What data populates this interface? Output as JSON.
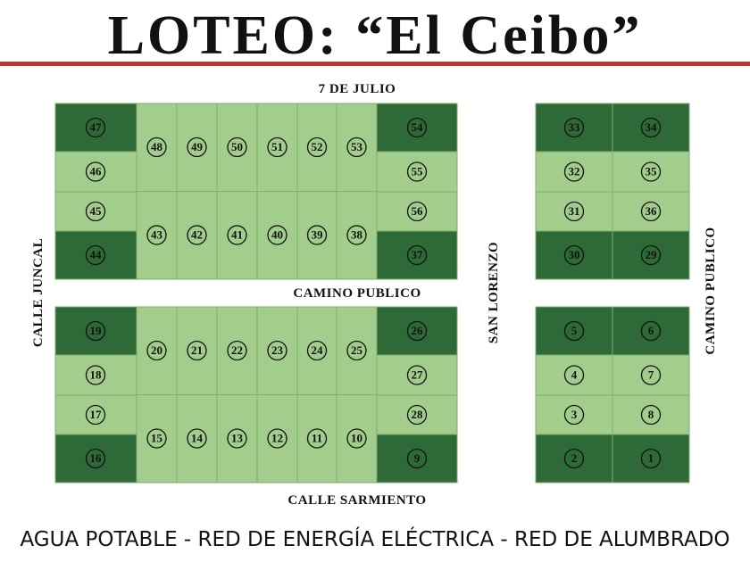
{
  "title": "LOTEO: “El Ceibo”",
  "streets": {
    "top": "7 DE JULIO",
    "middle": "CAMINO PUBLICO",
    "bottom": "CALLE SARMIENTO",
    "left": "CALLE JUNCAL",
    "center": "SAN LORENZO",
    "right": "CAMINO PUBLICO"
  },
  "blocks": [
    {
      "left": [
        "47",
        "46",
        "45",
        "44"
      ],
      "top": [
        "48",
        "49",
        "50",
        "51",
        "52",
        "53"
      ],
      "bottom": [
        "43",
        "42",
        "41",
        "40",
        "39",
        "38"
      ],
      "right": [
        "54",
        "55",
        "56",
        "37"
      ]
    },
    {
      "left": [
        "19",
        "18",
        "17",
        "16"
      ],
      "top": [
        "20",
        "21",
        "22",
        "23",
        "24",
        "25"
      ],
      "bottom": [
        "15",
        "14",
        "13",
        "12",
        "11",
        "10"
      ],
      "right": [
        "26",
        "27",
        "28",
        "9"
      ]
    },
    {
      "rows": [
        [
          "33",
          "34"
        ],
        [
          "32",
          "35"
        ],
        [
          "31",
          "36"
        ],
        [
          "30",
          "29"
        ]
      ]
    },
    {
      "rows": [
        [
          "5",
          "6"
        ],
        [
          "4",
          "7"
        ],
        [
          "3",
          "8"
        ],
        [
          "2",
          "1"
        ]
      ]
    }
  ],
  "footer": "AGUA POTABLE - RED DE ENERGÍA ELÉCTRICA - RED DE ALUMBRADO"
}
